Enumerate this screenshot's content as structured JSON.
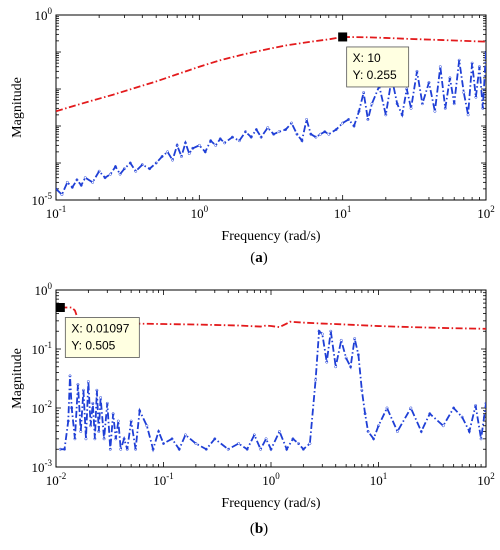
{
  "chart_data": [
    {
      "type": "line",
      "panel_label": "(a)",
      "panel_letter": "a",
      "xlabel": "Frequency (rad/s)",
      "ylabel": "Magnitude",
      "xscale": "log",
      "yscale": "log",
      "xlim": [
        0.1,
        100
      ],
      "ylim": [
        1e-05,
        1
      ],
      "x_ticks": [
        0.1,
        1,
        10,
        100
      ],
      "x_tick_labels": [
        [
          "10",
          "-1"
        ],
        [
          "10",
          "0"
        ],
        [
          "10",
          "1"
        ],
        [
          "10",
          "2"
        ]
      ],
      "y_ticks": [
        1e-05,
        1
      ],
      "y_tick_labels": [
        [
          "10",
          "-5"
        ],
        [
          "10",
          "0"
        ]
      ],
      "grid": false,
      "series": [
        {
          "color": "#e31a1c",
          "dash": "dashdot",
          "x": [
            0.1,
            0.13,
            0.18,
            0.25,
            0.35,
            0.5,
            0.7,
            1.0,
            1.4,
            2,
            3,
            4,
            6,
            8,
            10,
            15,
            20,
            30,
            50,
            70,
            100
          ],
          "y": [
            0.0025,
            0.0034,
            0.0049,
            0.007,
            0.0105,
            0.016,
            0.025,
            0.04,
            0.06,
            0.085,
            0.12,
            0.15,
            0.19,
            0.22,
            0.255,
            0.25,
            0.24,
            0.225,
            0.21,
            0.2,
            0.19
          ]
        },
        {
          "color": "#1f3fd6",
          "dash": "dashdot",
          "x": [
            0.1,
            0.11,
            0.12,
            0.13,
            0.14,
            0.15,
            0.16,
            0.18,
            0.2,
            0.22,
            0.24,
            0.26,
            0.28,
            0.3,
            0.33,
            0.36,
            0.4,
            0.45,
            0.5,
            0.55,
            0.6,
            0.65,
            0.7,
            0.75,
            0.8,
            0.85,
            0.9,
            1.0,
            1.1,
            1.2,
            1.3,
            1.4,
            1.5,
            1.7,
            1.9,
            2.1,
            2.3,
            2.5,
            2.7,
            3.0,
            3.3,
            3.6,
            4.0,
            4.4,
            4.8,
            5.2,
            5.6,
            6.0,
            6.5,
            7.0,
            7.5,
            8.0,
            9.0,
            10,
            11,
            12,
            13,
            14,
            15,
            16,
            18,
            20,
            22,
            24,
            26,
            28,
            30,
            33,
            36,
            40,
            44,
            48,
            52,
            56,
            60,
            65,
            70,
            75,
            80,
            85,
            90,
            95,
            100
          ],
          "y": [
            2e-05,
            1.4e-05,
            3e-05,
            2.2e-05,
            3.5e-05,
            2.5e-05,
            4e-05,
            3e-05,
            6e-05,
            4e-05,
            5e-05,
            8e-05,
            5e-05,
            7e-05,
            0.0001,
            6e-05,
            9e-05,
            7e-05,
            0.0001,
            0.00015,
            0.0002,
            0.00012,
            0.0003,
            0.00015,
            0.00035,
            0.00018,
            0.00025,
            0.0003,
            0.0002,
            0.0004,
            0.0003,
            0.00045,
            0.00035,
            0.0005,
            0.0004,
            0.0007,
            0.0005,
            0.0008,
            0.0005,
            0.0009,
            0.0006,
            0.0007,
            0.0008,
            0.0012,
            0.0006,
            0.0004,
            0.0015,
            0.0006,
            0.0005,
            0.0006,
            0.0007,
            0.0006,
            0.0008,
            0.0012,
            0.0015,
            0.001,
            0.0025,
            0.008,
            0.0015,
            0.004,
            0.012,
            0.002,
            0.02,
            0.004,
            0.002,
            0.01,
            0.003,
            0.03,
            0.004,
            0.015,
            0.0025,
            0.04,
            0.003,
            0.02,
            0.004,
            0.06,
            0.008,
            0.002,
            0.05,
            0.006,
            0.04,
            0.003,
            0.1
          ]
        }
      ],
      "annotation": {
        "x": 10,
        "y": 0.255,
        "lines": [
          "X: 10",
          "Y: 0.255"
        ]
      }
    },
    {
      "type": "line",
      "panel_label": "(b)",
      "panel_letter": "b",
      "xlabel": "Frequency (rad/s)",
      "ylabel": "Magnitude",
      "xscale": "log",
      "yscale": "log",
      "xlim": [
        0.01,
        100
      ],
      "ylim": [
        0.001,
        1
      ],
      "x_ticks": [
        0.01,
        0.1,
        1,
        10,
        100
      ],
      "x_tick_labels": [
        [
          "10",
          "-2"
        ],
        [
          "10",
          "-1"
        ],
        [
          "10",
          "0"
        ],
        [
          "10",
          "1"
        ],
        [
          "10",
          "2"
        ]
      ],
      "y_ticks": [
        0.001,
        0.01,
        0.1,
        1
      ],
      "y_tick_labels": [
        [
          "10",
          "-3"
        ],
        [
          "10",
          "-2"
        ],
        [
          "10",
          "-1"
        ],
        [
          "10",
          "0"
        ]
      ],
      "grid": false,
      "series": [
        {
          "color": "#e31a1c",
          "dash": "dashdot",
          "x": [
            0.01097,
            0.014,
            0.015,
            0.016,
            0.018,
            0.02,
            0.03,
            0.05,
            0.1,
            0.2,
            0.5,
            0.8,
            0.9,
            1.0,
            1.2,
            1.4,
            1.5,
            2,
            3,
            5,
            10,
            20,
            50,
            100
          ],
          "y": [
            0.505,
            0.505,
            0.45,
            0.32,
            0.29,
            0.28,
            0.275,
            0.27,
            0.265,
            0.26,
            0.25,
            0.24,
            0.25,
            0.245,
            0.235,
            0.27,
            0.29,
            0.28,
            0.27,
            0.26,
            0.245,
            0.235,
            0.225,
            0.22
          ]
        },
        {
          "color": "#1f3fd6",
          "dash": "dashdot",
          "x": [
            0.01097,
            0.012,
            0.013,
            0.0135,
            0.014,
            0.015,
            0.016,
            0.017,
            0.018,
            0.019,
            0.02,
            0.021,
            0.022,
            0.023,
            0.024,
            0.025,
            0.026,
            0.028,
            0.03,
            0.032,
            0.034,
            0.036,
            0.038,
            0.04,
            0.043,
            0.046,
            0.05,
            0.055,
            0.06,
            0.07,
            0.08,
            0.09,
            0.1,
            0.12,
            0.14,
            0.16,
            0.2,
            0.25,
            0.3,
            0.4,
            0.5,
            0.6,
            0.7,
            0.8,
            0.9,
            1.0,
            1.2,
            1.4,
            1.6,
            1.8,
            2.0,
            2.3,
            2.6,
            2.8,
            3.0,
            3.3,
            3.6,
            4.0,
            4.5,
            5.0,
            5.5,
            6.0,
            6.5,
            7.0,
            7.5,
            8.0,
            9.0,
            10,
            12,
            15,
            20,
            25,
            30,
            40,
            50,
            60,
            70,
            80,
            90,
            100
          ],
          "y": [
            0.002,
            0.002,
            0.006,
            0.035,
            0.01,
            0.003,
            0.025,
            0.004,
            0.02,
            0.003,
            0.028,
            0.005,
            0.012,
            0.003,
            0.02,
            0.004,
            0.015,
            0.003,
            0.012,
            0.002,
            0.008,
            0.003,
            0.006,
            0.002,
            0.003,
            0.002,
            0.006,
            0.002,
            0.009,
            0.005,
            0.002,
            0.004,
            0.0025,
            0.003,
            0.002,
            0.0035,
            0.0025,
            0.002,
            0.003,
            0.002,
            0.0025,
            0.002,
            0.0035,
            0.002,
            0.003,
            0.002,
            0.004,
            0.002,
            0.003,
            0.0025,
            0.002,
            0.0025,
            0.03,
            0.2,
            0.18,
            0.06,
            0.2,
            0.05,
            0.14,
            0.07,
            0.05,
            0.15,
            0.08,
            0.02,
            0.008,
            0.004,
            0.003,
            0.005,
            0.01,
            0.004,
            0.01,
            0.004,
            0.008,
            0.005,
            0.01,
            0.007,
            0.004,
            0.011,
            0.003,
            0.012
          ]
        }
      ],
      "annotation": {
        "x": 0.01097,
        "y": 0.505,
        "lines": [
          "X: 0.01097",
          "Y: 0.505"
        ]
      }
    }
  ]
}
